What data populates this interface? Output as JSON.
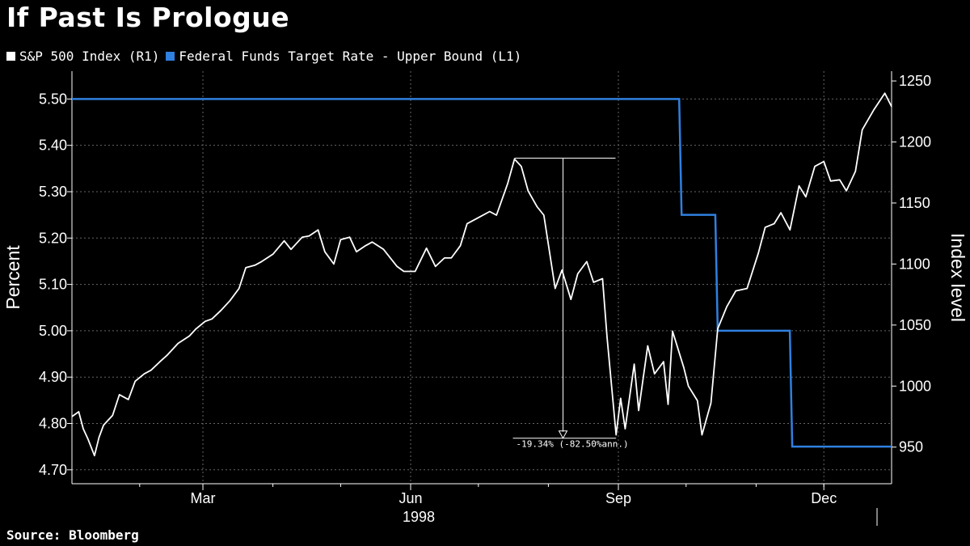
{
  "title": "If Past Is Prologue",
  "source": "Source: Bloomberg",
  "colors": {
    "background": "#000000",
    "sp500": "#ffffff",
    "fed_funds": "#2f80e0",
    "grid": "#666666"
  },
  "chart_data": {
    "type": "line",
    "legend_position": "top-left",
    "grid": true,
    "xlabel": "1998",
    "x_ticks": [
      {
        "label": "Mar",
        "date": "1998-03-01"
      },
      {
        "label": "Jun",
        "date": "1998-06-01"
      },
      {
        "label": "Sep",
        "date": "1998-09-01"
      },
      {
        "label": "Dec",
        "date": "1998-12-01"
      }
    ],
    "x_range": [
      "1998-01-02",
      "1998-12-31"
    ],
    "left_axis": {
      "label": "Percent",
      "ylim": [
        4.67,
        5.56
      ],
      "ticks": [
        "4.70",
        "4.80",
        "4.90",
        "5.00",
        "5.10",
        "5.20",
        "5.30",
        "5.40",
        "5.50"
      ]
    },
    "right_axis": {
      "label": "Index level",
      "ylim": [
        920,
        1258
      ],
      "ticks": [
        "950",
        "1000",
        "1050",
        "1100",
        "1150",
        "1200",
        "1250"
      ]
    },
    "series": [
      {
        "name": "Federal Funds Target Rate - Upper Bound",
        "legend_label": "Federal Funds Target Rate - Upper Bound  (L1)",
        "axis": "left",
        "step": true,
        "x": [
          "1998-01-02",
          "1998-09-29",
          "1998-10-15",
          "1998-11-17",
          "1998-12-31"
        ],
        "values": [
          5.5,
          5.25,
          5.0,
          4.75,
          4.75
        ]
      },
      {
        "name": "S&P 500 Index",
        "legend_label": "S&P 500 Index  (R1)",
        "axis": "right",
        "x": [
          "1998-01-02",
          "1998-01-05",
          "1998-01-07",
          "1998-01-09",
          "1998-01-12",
          "1998-01-14",
          "1998-01-16",
          "1998-01-20",
          "1998-01-23",
          "1998-01-27",
          "1998-01-30",
          "1998-02-03",
          "1998-02-06",
          "1998-02-10",
          "1998-02-13",
          "1998-02-18",
          "1998-02-23",
          "1998-02-26",
          "1998-03-02",
          "1998-03-05",
          "1998-03-09",
          "1998-03-13",
          "1998-03-17",
          "1998-03-20",
          "1998-03-24",
          "1998-03-27",
          "1998-04-01",
          "1998-04-06",
          "1998-04-09",
          "1998-04-14",
          "1998-04-17",
          "1998-04-21",
          "1998-04-24",
          "1998-04-28",
          "1998-05-01",
          "1998-05-05",
          "1998-05-08",
          "1998-05-12",
          "1998-05-15",
          "1998-05-20",
          "1998-05-26",
          "1998-05-29",
          "1998-06-03",
          "1998-06-08",
          "1998-06-12",
          "1998-06-16",
          "1998-06-19",
          "1998-06-23",
          "1998-06-26",
          "1998-07-01",
          "1998-07-06",
          "1998-07-09",
          "1998-07-14",
          "1998-07-17",
          "1998-07-20",
          "1998-07-23",
          "1998-07-27",
          "1998-07-30",
          "1998-08-04",
          "1998-08-07",
          "1998-08-11",
          "1998-08-14",
          "1998-08-18",
          "1998-08-21",
          "1998-08-25",
          "1998-08-27",
          "1998-08-31",
          "1998-09-02",
          "1998-09-04",
          "1998-09-08",
          "1998-09-10",
          "1998-09-14",
          "1998-09-17",
          "1998-09-21",
          "1998-09-23",
          "1998-09-25",
          "1998-09-30",
          "1998-10-02",
          "1998-10-06",
          "1998-10-08",
          "1998-10-12",
          "1998-10-15",
          "1998-10-19",
          "1998-10-23",
          "1998-10-28",
          "1998-11-02",
          "1998-11-05",
          "1998-11-09",
          "1998-11-12",
          "1998-11-16",
          "1998-11-20",
          "1998-11-23",
          "1998-11-27",
          "1998-12-01",
          "1998-12-04",
          "1998-12-08",
          "1998-12-11",
          "1998-12-15",
          "1998-12-18",
          "1998-12-23",
          "1998-12-28",
          "1998-12-31"
        ],
        "values": [
          975,
          979,
          965,
          957,
          943,
          958,
          968,
          976,
          993,
          989,
          1004,
          1010,
          1013,
          1020,
          1025,
          1035,
          1041,
          1047,
          1053,
          1055,
          1062,
          1070,
          1080,
          1097,
          1099,
          1102,
          1108,
          1119,
          1112,
          1122,
          1123,
          1128,
          1110,
          1100,
          1120,
          1122,
          1110,
          1115,
          1118,
          1112,
          1098,
          1094,
          1094,
          1113,
          1098,
          1105,
          1105,
          1115,
          1133,
          1138,
          1143,
          1140,
          1166,
          1186,
          1180,
          1160,
          1147,
          1140,
          1080,
          1095,
          1071,
          1092,
          1102,
          1085,
          1088,
          1040,
          960,
          990,
          965,
          1018,
          980,
          1033,
          1010,
          1020,
          985,
          1045,
          1015,
          1000,
          988,
          960,
          986,
          1047,
          1065,
          1078,
          1080,
          1109,
          1130,
          1133,
          1142,
          1128,
          1164,
          1155,
          1180,
          1184,
          1168,
          1169,
          1160,
          1176,
          1210,
          1226,
          1240,
          1229
        ]
      }
    ],
    "annotation": {
      "text": "-19.34% (-82.50%ann.)",
      "from": {
        "date": "1998-07-17",
        "value": 1186.75
      },
      "to": {
        "date": "1998-08-31",
        "value": 957.28
      }
    }
  }
}
